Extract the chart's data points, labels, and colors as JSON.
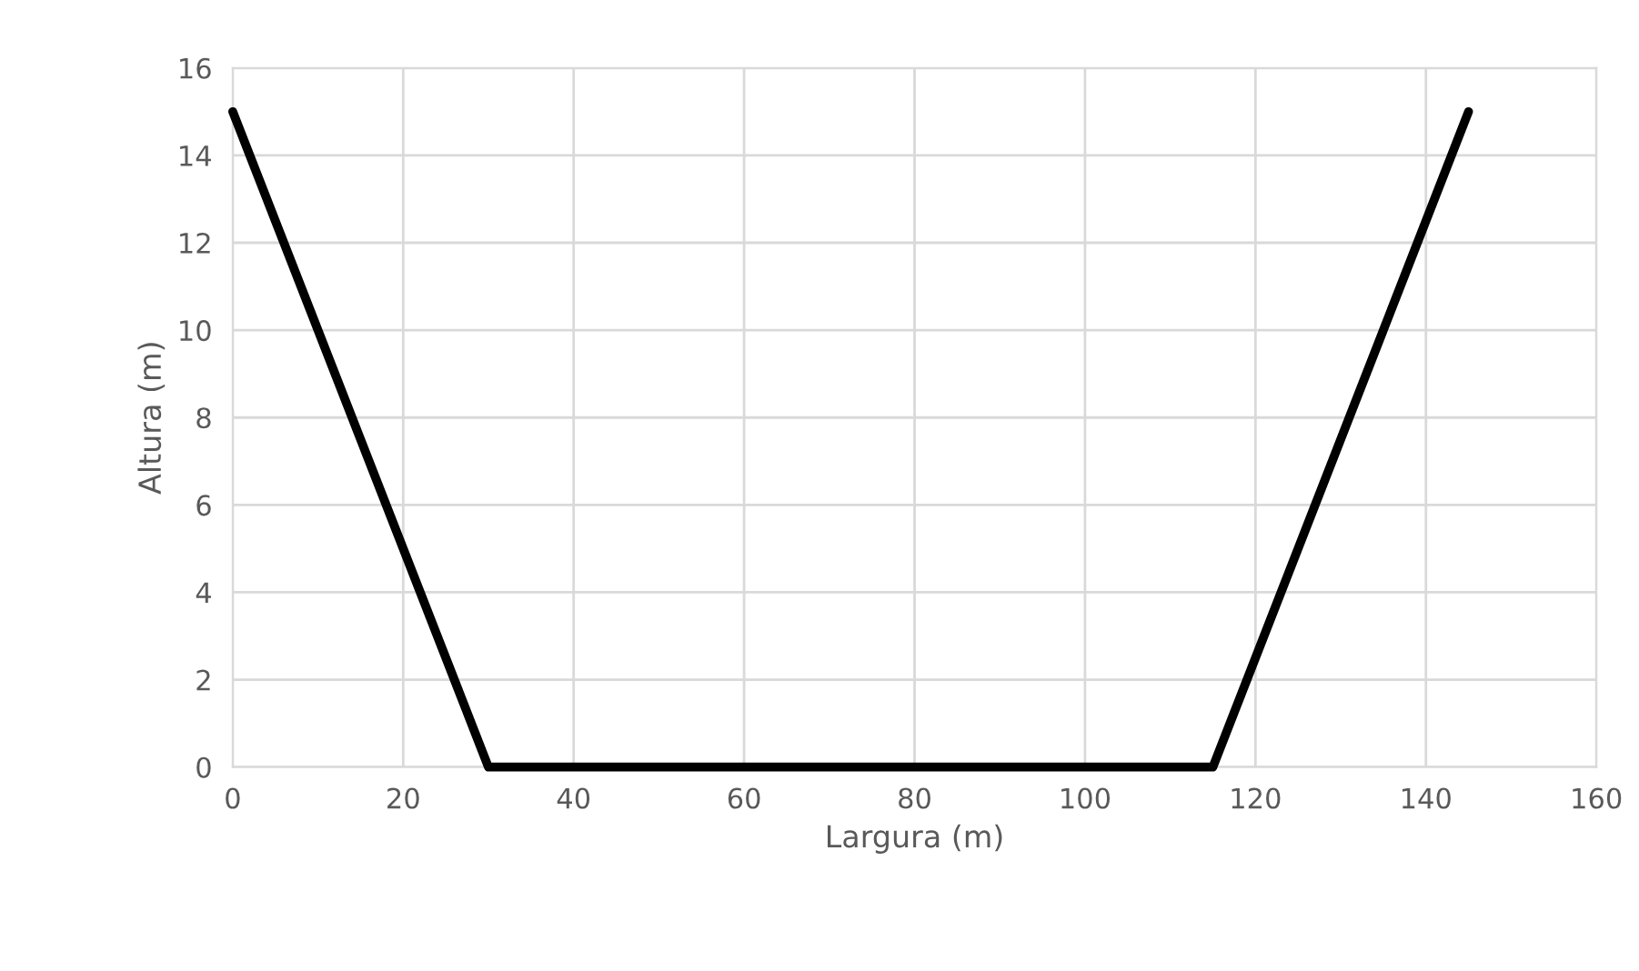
{
  "chart_data": {
    "type": "line",
    "xlabel": "Largura (m)",
    "ylabel": "Altura (m)",
    "x": [
      0,
      30,
      115,
      145
    ],
    "series": [
      {
        "color": "#000000",
        "values": [
          15,
          0,
          0,
          15
        ]
      }
    ],
    "xlim": [
      0,
      160
    ],
    "xticks": [
      0,
      20,
      40,
      60,
      80,
      100,
      120,
      140,
      160
    ],
    "ylim": [
      0,
      16
    ],
    "yticks": [
      0,
      2,
      4,
      6,
      8,
      10,
      12,
      14,
      16
    ],
    "grid": true,
    "marker": "none",
    "line_style": "solid"
  }
}
